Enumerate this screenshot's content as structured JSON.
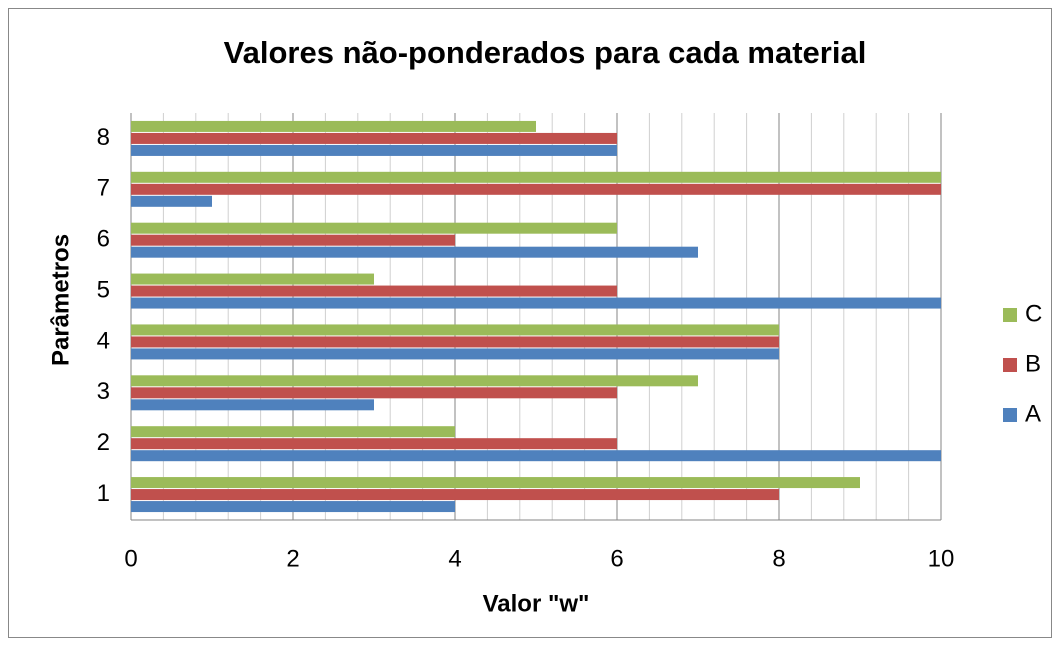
{
  "chart_data": {
    "type": "hbar",
    "title": "Valores não-ponderados para cada material",
    "xlabel": "Valor \"w\"",
    "ylabel": "Parâmetros",
    "categories": [
      "1",
      "2",
      "3",
      "4",
      "5",
      "6",
      "7",
      "8"
    ],
    "series": [
      {
        "name": "A",
        "color": "#4f81bd",
        "values": [
          4,
          10,
          3,
          8,
          10,
          7,
          1,
          6
        ]
      },
      {
        "name": "B",
        "color": "#c0504d",
        "values": [
          8,
          6,
          6,
          8,
          6,
          4,
          10,
          6
        ]
      },
      {
        "name": "C",
        "color": "#9bbb59",
        "values": [
          9,
          4,
          7,
          8,
          3,
          6,
          10,
          5
        ]
      }
    ],
    "xlim": [
      0,
      10
    ],
    "xticks": [
      0,
      2,
      4,
      6,
      8,
      10
    ],
    "xminorticks": [
      0.4,
      0.8,
      1.2,
      1.6,
      2.4,
      2.8,
      3.2,
      3.6,
      4.4,
      4.8,
      5.2,
      5.6,
      6.4,
      6.8,
      7.2,
      7.6,
      8.4,
      8.8,
      9.2,
      9.6
    ],
    "grid": true,
    "legend": "right"
  }
}
